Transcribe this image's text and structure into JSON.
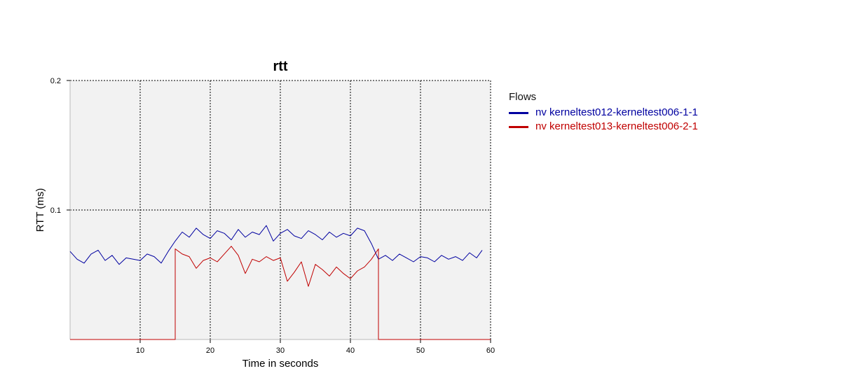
{
  "chart_data": {
    "type": "line",
    "title": "rtt",
    "xlabel": "Time in seconds",
    "ylabel": "RTT (ms)",
    "xlim": [
      0,
      60
    ],
    "ylim": [
      0,
      0.2
    ],
    "x_ticks": [
      10,
      20,
      30,
      40,
      50,
      60
    ],
    "y_ticks": [
      0.1,
      0.2
    ],
    "y_tick_labels": [
      "0.1",
      "0.2"
    ],
    "grid": true,
    "legend_position": "right",
    "legend_title": "Flows",
    "series": [
      {
        "name": "nv kerneltest012-kerneltest006-1-1",
        "color": "#0000a0",
        "x": [
          0,
          1,
          2,
          3,
          4,
          5,
          6,
          7,
          8,
          9,
          10,
          11,
          12,
          13,
          14,
          15,
          16,
          17,
          18,
          19,
          20,
          21,
          22,
          23,
          24,
          25,
          26,
          27,
          28,
          29,
          30,
          31,
          32,
          33,
          34,
          35,
          36,
          37,
          38,
          39,
          40,
          41,
          42,
          43,
          44,
          45,
          46,
          47,
          48,
          49,
          50,
          51,
          52,
          53,
          54,
          55,
          56,
          57,
          58,
          58.8
        ],
        "y": [
          0.068,
          0.062,
          0.059,
          0.066,
          0.069,
          0.061,
          0.065,
          0.058,
          0.063,
          0.062,
          0.061,
          0.066,
          0.064,
          0.059,
          0.068,
          0.076,
          0.083,
          0.079,
          0.086,
          0.081,
          0.078,
          0.084,
          0.082,
          0.077,
          0.085,
          0.079,
          0.083,
          0.081,
          0.088,
          0.076,
          0.082,
          0.085,
          0.08,
          0.078,
          0.084,
          0.081,
          0.077,
          0.083,
          0.079,
          0.082,
          0.08,
          0.086,
          0.084,
          0.074,
          0.062,
          0.065,
          0.061,
          0.066,
          0.063,
          0.06,
          0.064,
          0.063,
          0.06,
          0.065,
          0.062,
          0.064,
          0.061,
          0.067,
          0.063,
          0.069
        ]
      },
      {
        "name": "nv kerneltest013-kerneltest006-2-1",
        "color": "#c00000",
        "x": [
          0,
          15,
          15,
          16,
          17,
          18,
          19,
          20,
          21,
          22,
          23,
          24,
          25,
          26,
          27,
          28,
          29,
          30,
          31,
          32,
          33,
          34,
          35,
          36,
          37,
          38,
          39,
          40,
          41,
          42,
          43,
          44,
          44,
          60
        ],
        "y": [
          0,
          0,
          0.07,
          0.066,
          0.064,
          0.055,
          0.061,
          0.063,
          0.06,
          0.066,
          0.072,
          0.065,
          0.051,
          0.062,
          0.06,
          0.064,
          0.061,
          0.063,
          0.045,
          0.052,
          0.06,
          0.041,
          0.058,
          0.054,
          0.049,
          0.056,
          0.051,
          0.047,
          0.053,
          0.056,
          0.062,
          0.07,
          0,
          0
        ]
      }
    ]
  }
}
